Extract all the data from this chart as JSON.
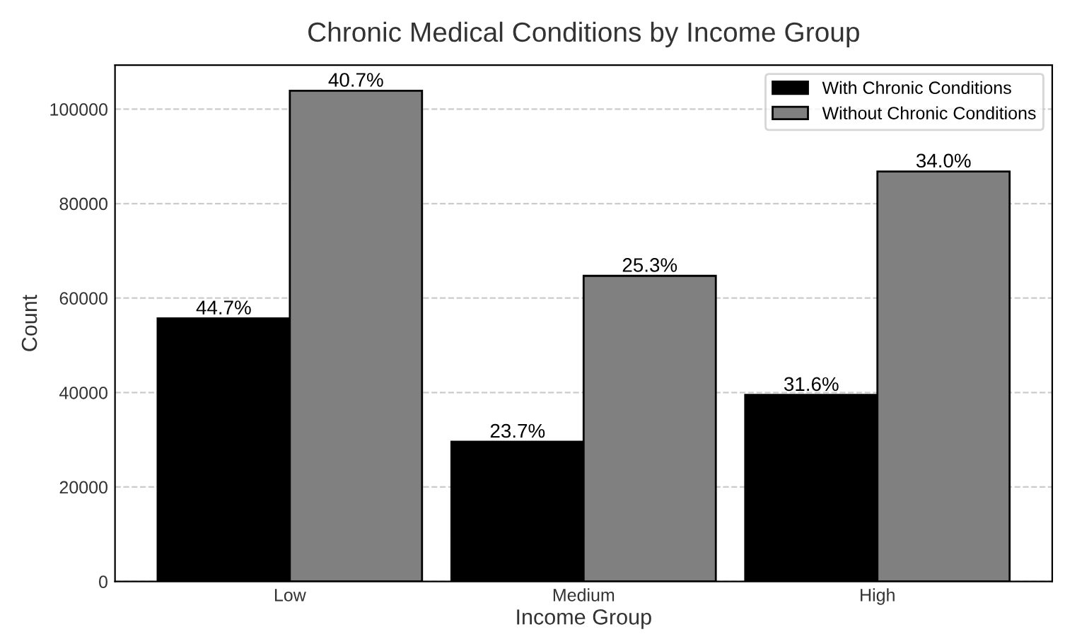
{
  "chart_data": {
    "type": "bar",
    "title": "Chronic Medical Conditions by Income Group",
    "xlabel": "Income Group",
    "ylabel": "Count",
    "categories": [
      "Low",
      "Medium",
      "High"
    ],
    "series": [
      {
        "name": "With Chronic Conditions",
        "color": "#000000",
        "values": [
          55700,
          29600,
          39500
        ]
      },
      {
        "name": "Without Chronic Conditions",
        "color": "#808080",
        "values": [
          103900,
          64700,
          86800
        ]
      }
    ],
    "annotations": [
      {
        "text": "44.7%",
        "x": "Low",
        "y": 55700
      },
      {
        "text": "23.7%",
        "x": "Medium",
        "y": 29600
      },
      {
        "text": "31.6%",
        "x": "High",
        "y": 39500
      },
      {
        "text": "40.7%",
        "x": "Low",
        "y": 103900
      },
      {
        "text": "25.3%",
        "x": "Medium",
        "y": 64700
      },
      {
        "text": "34.0%",
        "x": "High",
        "y": 86800
      }
    ],
    "ylim": [
      0,
      109300
    ],
    "yticks": [
      0,
      20000,
      40000,
      60000,
      80000,
      100000
    ],
    "grid": "y",
    "legend": "top right"
  }
}
